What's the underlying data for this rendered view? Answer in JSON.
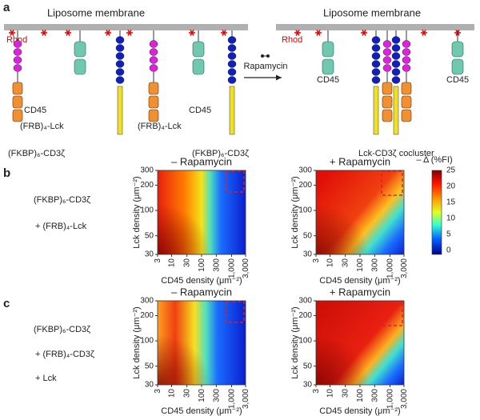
{
  "panel_a": {
    "label": "a",
    "membrane_left": "Liposome membrane",
    "membrane_right": "Liposome membrane",
    "rhod_left": "Rhod",
    "rhod_right": "Rhod",
    "drug": "Rapamycin",
    "left_labels": [
      "CD45",
      "(FRB)₄-Lck",
      "(FKBP)₆-CD3ζ",
      "(FRB)₄-Lck",
      "CD45",
      "(FKBP)₆-CD3ζ"
    ],
    "right_labels": [
      "CD45",
      "Lck-CD3ζ cocluster",
      "CD45"
    ]
  },
  "panels": [
    {
      "label": "b",
      "conditions": [
        "(FKBP)₆-CD3ζ",
        "+ (FRB)₄-Lck"
      ],
      "maps": [
        {
          "title": "– Rapamycin"
        },
        {
          "title": "+ Rapamycin"
        }
      ]
    },
    {
      "label": "c",
      "conditions": [
        "(FKBP)₆-CD3ζ",
        "+ (FRB)₄-CD3ζ",
        "+ Lck"
      ],
      "maps": [
        {
          "title": "– Rapamycin"
        },
        {
          "title": "+ Rapamycin"
        }
      ]
    }
  ],
  "axes": {
    "x_label": "CD45 density (μm⁻²)",
    "y_label": "Lck density (μm⁻²)",
    "x_ticks": [
      "3",
      "10",
      "30",
      "100",
      "300",
      "1,000",
      "3,000"
    ],
    "y_ticks": [
      "30",
      "50",
      "100",
      "200",
      "300"
    ]
  },
  "colorbar": {
    "title": "– Δ (%FI)",
    "ticks": [
      "25",
      "20",
      "15",
      "10",
      "5",
      "0"
    ]
  }
}
